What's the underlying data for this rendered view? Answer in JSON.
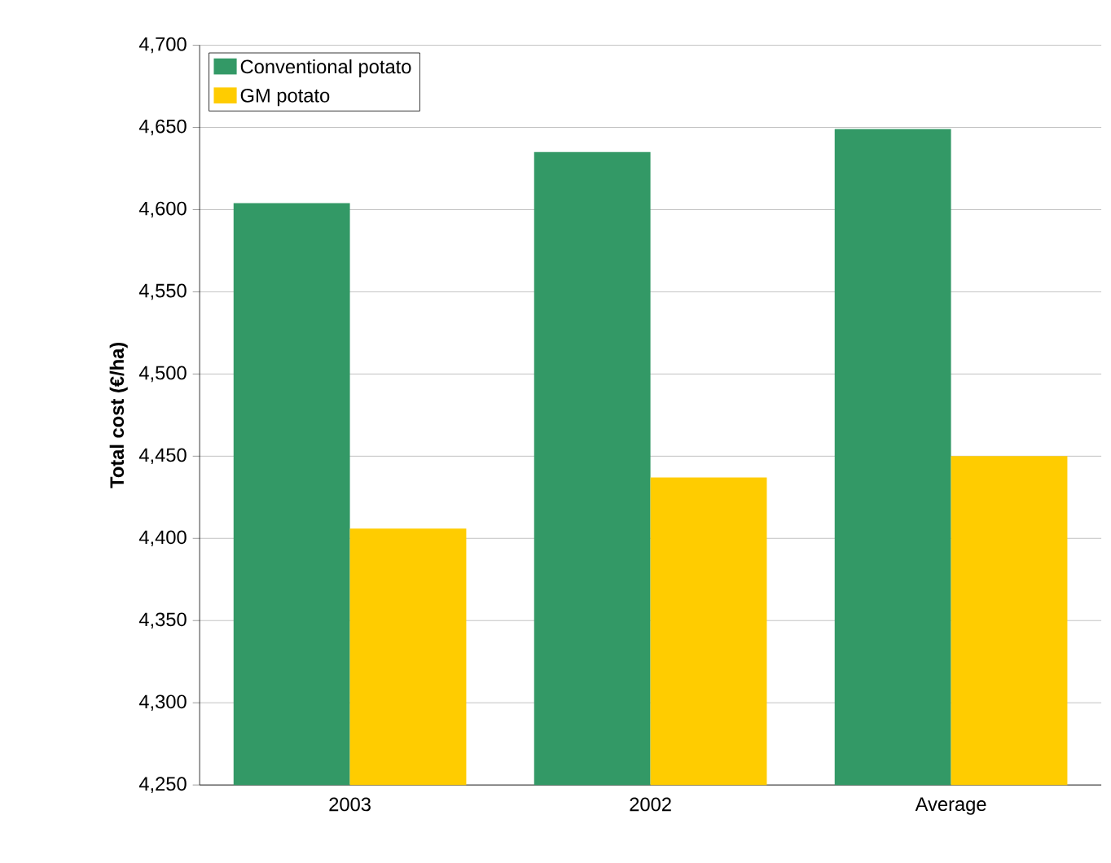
{
  "chart_data": {
    "type": "bar",
    "ylabel": "Total cost (€/ha)",
    "categories": [
      "2003",
      "2002",
      "Average"
    ],
    "series": [
      {
        "name": "Conventional potato",
        "color": "#339966",
        "values": [
          4604,
          4635,
          4649
        ]
      },
      {
        "name": "GM potato",
        "color": "#ffcc00",
        "values": [
          4406,
          4437,
          4450
        ]
      }
    ],
    "ylim": [
      4250,
      4700
    ],
    "yticks": [
      {
        "value": 4250,
        "label": "4,250"
      },
      {
        "value": 4300,
        "label": "4,300"
      },
      {
        "value": 4350,
        "label": "4,350"
      },
      {
        "value": 4400,
        "label": "4,400"
      },
      {
        "value": 4450,
        "label": "4,450"
      },
      {
        "value": 4500,
        "label": "4,500"
      },
      {
        "value": 4550,
        "label": "4,550"
      },
      {
        "value": 4600,
        "label": "4,600"
      },
      {
        "value": 4650,
        "label": "4,650"
      },
      {
        "value": 4700,
        "label": "4,700"
      }
    ],
    "grid": "y",
    "legend": "top left"
  }
}
